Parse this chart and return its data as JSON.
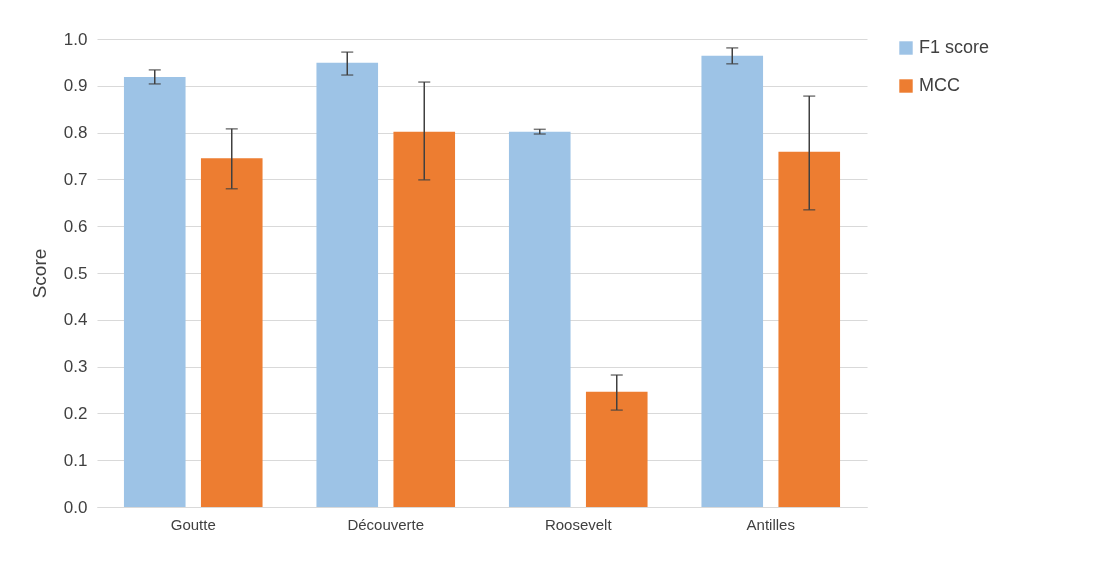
{
  "chart_data": {
    "type": "bar",
    "ylabel": "Score",
    "categories": [
      "Goutte",
      "Découverte",
      "Roosevelt",
      "Antilles"
    ],
    "series": [
      {
        "name": "F1 score",
        "color": "#9dc3e6",
        "values": [
          0.919,
          0.949,
          0.802,
          0.964
        ],
        "errors": [
          [
            0.904,
            0.934
          ],
          [
            0.923,
            0.972
          ],
          [
            0.797,
            0.807
          ],
          [
            0.947,
            0.981
          ]
        ]
      },
      {
        "name": "MCC",
        "color": "#ed7d31",
        "values": [
          0.745,
          0.802,
          0.246,
          0.759
        ],
        "errors": [
          [
            0.68,
            0.808
          ],
          [
            0.699,
            0.908
          ],
          [
            0.207,
            0.282
          ],
          [
            0.635,
            0.878
          ]
        ]
      }
    ],
    "ylim": [
      0,
      1
    ],
    "yticks": [
      {
        "value": 0,
        "label": "0.0"
      },
      0.1,
      0.2,
      0.3,
      0.4,
      0.5,
      0.6,
      0.7,
      0.8,
      0.9,
      {
        "value": 1,
        "label": "1.0"
      }
    ],
    "grid": "y",
    "legend": "right"
  }
}
